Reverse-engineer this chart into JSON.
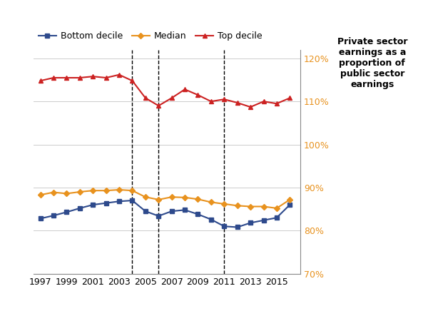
{
  "years": [
    1997,
    1998,
    1999,
    2000,
    2001,
    2002,
    2003,
    2004,
    2005,
    2006,
    2007,
    2008,
    2009,
    2010,
    2011,
    2012,
    2013,
    2014,
    2015,
    2016
  ],
  "bottom_decile": [
    0.828,
    0.835,
    0.843,
    0.852,
    0.86,
    0.864,
    0.868,
    0.87,
    0.845,
    0.834,
    0.845,
    0.848,
    0.838,
    0.826,
    0.81,
    0.808,
    0.818,
    0.824,
    0.83,
    0.86
  ],
  "median": [
    0.883,
    0.889,
    0.886,
    0.89,
    0.893,
    0.893,
    0.895,
    0.893,
    0.878,
    0.872,
    0.878,
    0.877,
    0.873,
    0.866,
    0.862,
    0.858,
    0.856,
    0.856,
    0.852,
    0.872
  ],
  "top_decile": [
    1.148,
    1.155,
    1.155,
    1.155,
    1.158,
    1.155,
    1.162,
    1.148,
    1.108,
    1.09,
    1.108,
    1.128,
    1.115,
    1.1,
    1.105,
    1.097,
    1.087,
    1.1,
    1.095,
    1.108
  ],
  "dashed_lines": [
    2004,
    2006,
    2011
  ],
  "ylim": [
    0.7,
    1.22
  ],
  "yticks": [
    0.7,
    0.8,
    0.9,
    1.0,
    1.1,
    1.2
  ],
  "ytick_labels": [
    "70%",
    "80%",
    "90%",
    "100%",
    "110%",
    "120%"
  ],
  "bottom_decile_color": "#2e4a8c",
  "median_color": "#e8921e",
  "top_decile_color": "#cc2222",
  "ytick_color": "#e8921e",
  "title_lines": [
    "Private sector",
    "earnings as a",
    "proportion of",
    "public sector",
    "earnings"
  ],
  "legend_labels": [
    "Bottom decile",
    "Median",
    "Top decile"
  ],
  "xtick_years": [
    1997,
    1999,
    2001,
    2003,
    2005,
    2007,
    2009,
    2011,
    2013,
    2015
  ],
  "plot_bg": "#ffffff",
  "grid_color": "#cccccc"
}
